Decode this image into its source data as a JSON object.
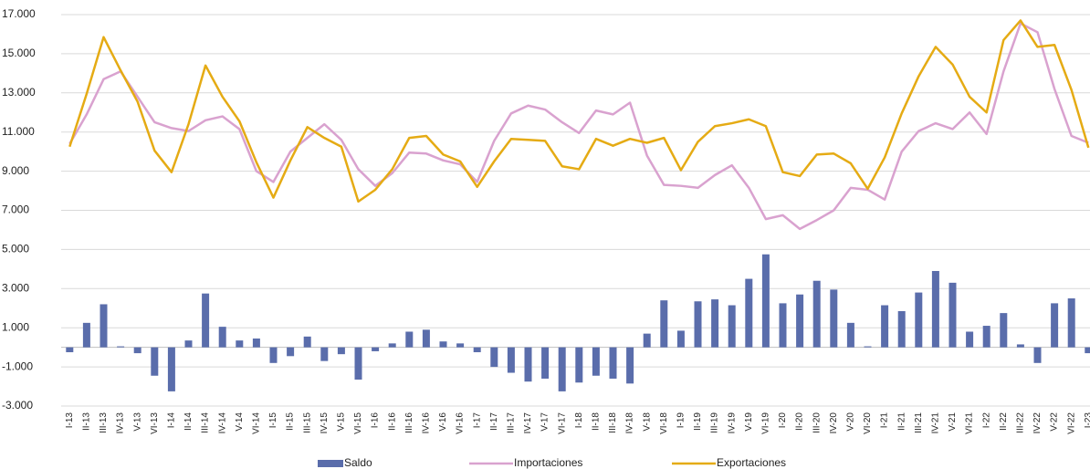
{
  "chart_data": {
    "type": "bar-line",
    "categories": [
      "I-13",
      "II-13",
      "III-13",
      "IV-13",
      "V-13",
      "VI-13",
      "I-14",
      "II-14",
      "III-14",
      "IV-14",
      "V-14",
      "VI-14",
      "I-15",
      "II-15",
      "III-15",
      "IV-15",
      "V-15",
      "VI-15",
      "I-16",
      "II-16",
      "III-16",
      "IV-16",
      "V-16",
      "VI-16",
      "I-17",
      "II-17",
      "III-17",
      "IV-17",
      "V-17",
      "VI-17",
      "I-18",
      "II-18",
      "III-18",
      "IV-18",
      "V-18",
      "VI-18",
      "I-19",
      "II-19",
      "III-19",
      "IV-19",
      "V-19",
      "VI-19",
      "I-20",
      "II-20",
      "III-20",
      "IV-20",
      "V-20",
      "VI-20",
      "I-21",
      "II-21",
      "III-21",
      "IV-21",
      "V-21",
      "VI-21",
      "I-22",
      "II-22",
      "III-22",
      "IV-22",
      "V-22",
      "VI-22",
      "I-23"
    ],
    "series": [
      {
        "name": "Saldo",
        "type": "bar",
        "color": "#5a6dab",
        "values": [
          -250,
          1250,
          2200,
          50,
          -300,
          -1450,
          -2250,
          350,
          2750,
          1050,
          350,
          450,
          -800,
          -450,
          550,
          -700,
          -350,
          -1650,
          -200,
          200,
          800,
          900,
          300,
          200,
          -250,
          -1000,
          -1300,
          -1750,
          -1600,
          -2250,
          -1800,
          -1450,
          -1600,
          -1850,
          700,
          2400,
          850,
          2350,
          2450,
          2150,
          3500,
          4750,
          2250,
          2700,
          3400,
          2950,
          1250,
          50,
          2150,
          1850,
          2800,
          3900,
          3300,
          800,
          1100,
          1750,
          150,
          -800,
          2250,
          2500,
          -300
        ]
      },
      {
        "name": "Importaciones",
        "type": "line",
        "color": "#d9a2cf",
        "values": [
          10400,
          11900,
          13700,
          14100,
          12800,
          11500,
          11200,
          11050,
          11600,
          11800,
          11150,
          9000,
          8450,
          10000,
          10700,
          11400,
          10600,
          9100,
          8250,
          8900,
          9950,
          9900,
          9550,
          9350,
          8450,
          10550,
          11950,
          12350,
          12150,
          11500,
          10950,
          12100,
          11900,
          12500,
          9800,
          8300,
          8250,
          8150,
          8800,
          9300,
          8150,
          6550,
          6750,
          6050,
          6500,
          7000,
          8150,
          8050,
          7550,
          10000,
          11050,
          11450,
          11150,
          12000,
          10900,
          14100,
          16550,
          16100,
          13200,
          10800,
          10450
        ]
      },
      {
        "name": "Exportaciones",
        "type": "line",
        "color": "#e5ab14",
        "values": [
          10250,
          12950,
          15850,
          14150,
          12550,
          10050,
          8950,
          11400,
          14400,
          12800,
          11550,
          9450,
          7650,
          9550,
          11250,
          10700,
          10250,
          7450,
          8050,
          9100,
          10700,
          10800,
          9850,
          9500,
          8200,
          9500,
          10650,
          10600,
          10550,
          9250,
          9100,
          10650,
          10300,
          10650,
          10450,
          10700,
          9050,
          10500,
          11300,
          11450,
          11650,
          11300,
          8950,
          8750,
          9850,
          9900,
          9400,
          8100,
          9700,
          11950,
          13850,
          15350,
          14450,
          12800,
          12000,
          15700,
          16700,
          15350,
          15450,
          13150,
          10200
        ]
      }
    ],
    "ylim": [
      -3000,
      17000
    ],
    "yticks": [
      {
        "value": -3000,
        "label": "-3.000"
      },
      {
        "value": -1000,
        "label": "-1.000"
      },
      {
        "value": 1000,
        "label": "1.000"
      },
      {
        "value": 3000,
        "label": "3.000"
      },
      {
        "value": 5000,
        "label": "5.000"
      },
      {
        "value": 7000,
        "label": "7.000"
      },
      {
        "value": 9000,
        "label": "9.000"
      },
      {
        "value": 11000,
        "label": "11.000"
      },
      {
        "value": 13000,
        "label": "13.000"
      },
      {
        "value": 15000,
        "label": "15.000"
      },
      {
        "value": 17000,
        "label": "17.000"
      }
    ],
    "grid": true,
    "legend": "bottom"
  }
}
